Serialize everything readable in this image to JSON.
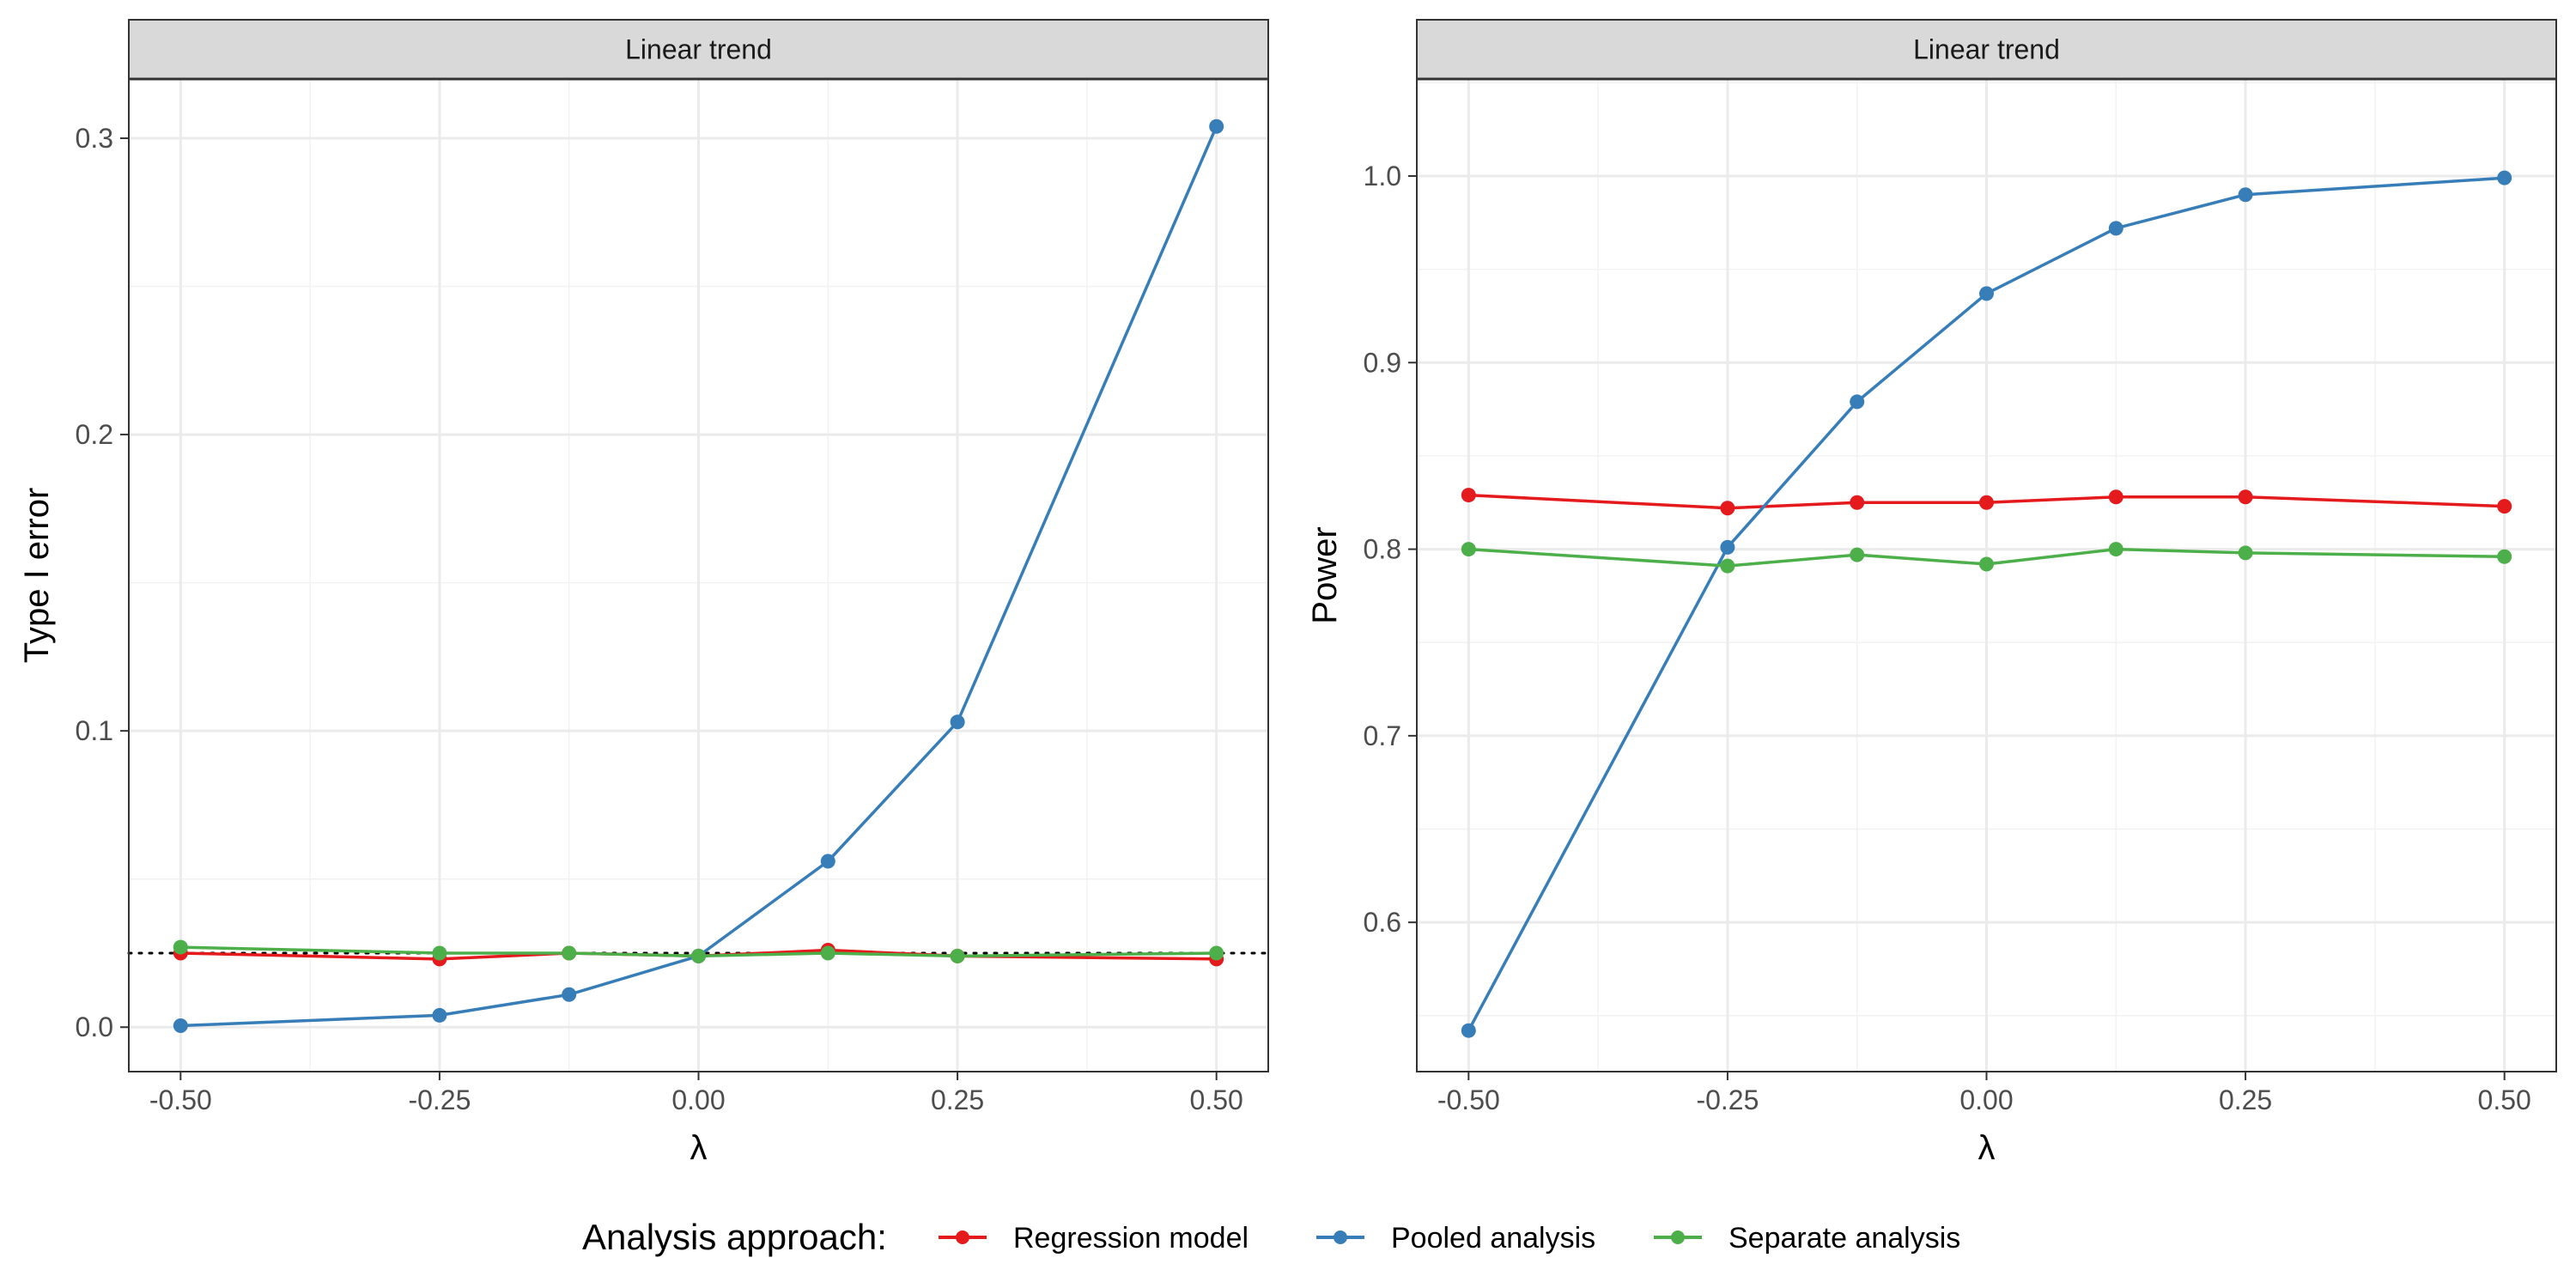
{
  "chart_data": [
    {
      "type": "line",
      "title": "Linear trend",
      "xlabel": "λ",
      "ylabel": "Type I error",
      "x": [
        -0.5,
        -0.25,
        -0.125,
        0.0,
        0.125,
        0.25,
        0.5
      ],
      "xticks": [
        -0.5,
        -0.25,
        0.0,
        0.25,
        0.5
      ],
      "xtick_labels": [
        "-0.50",
        "-0.25",
        "0.00",
        "0.25",
        "0.50"
      ],
      "yticks": [
        0.0,
        0.1,
        0.2,
        0.3
      ],
      "ytick_labels": [
        "0.0",
        "0.1",
        "0.2",
        "0.3"
      ],
      "xlim": [
        -0.55,
        0.55
      ],
      "ylim": [
        -0.015,
        0.32
      ],
      "reference_line": {
        "y": 0.025,
        "style": "dotted"
      },
      "grid": true,
      "series": [
        {
          "name": "Regression model",
          "color": "#E41A1C",
          "values": [
            0.025,
            0.023,
            0.025,
            0.024,
            0.026,
            0.024,
            0.023
          ]
        },
        {
          "name": "Pooled analysis",
          "color": "#377EB8",
          "values": [
            0.0005,
            0.004,
            0.011,
            0.024,
            0.056,
            0.103,
            0.304
          ]
        },
        {
          "name": "Separate analysis",
          "color": "#4DAF4A",
          "values": [
            0.027,
            0.025,
            0.025,
            0.024,
            0.025,
            0.024,
            0.025
          ]
        }
      ]
    },
    {
      "type": "line",
      "title": "Linear trend",
      "xlabel": "λ",
      "ylabel": "Power",
      "x": [
        -0.5,
        -0.25,
        -0.125,
        0.0,
        0.125,
        0.25,
        0.5
      ],
      "xticks": [
        -0.5,
        -0.25,
        0.0,
        0.25,
        0.5
      ],
      "xtick_labels": [
        "-0.50",
        "-0.25",
        "0.00",
        "0.25",
        "0.50"
      ],
      "yticks": [
        0.6,
        0.7,
        0.8,
        0.9,
        1.0
      ],
      "ytick_labels": [
        "0.6",
        "0.7",
        "0.8",
        "0.9",
        "1.0"
      ],
      "xlim": [
        -0.55,
        0.55
      ],
      "ylim": [
        0.52,
        1.052
      ],
      "grid": true,
      "series": [
        {
          "name": "Regression model",
          "color": "#E41A1C",
          "values": [
            0.829,
            0.822,
            0.825,
            0.825,
            0.828,
            0.828,
            0.823
          ]
        },
        {
          "name": "Pooled analysis",
          "color": "#377EB8",
          "values": [
            0.542,
            0.801,
            0.879,
            0.937,
            0.972,
            0.99,
            0.999
          ]
        },
        {
          "name": "Separate analysis",
          "color": "#4DAF4A",
          "values": [
            0.8,
            0.791,
            0.797,
            0.792,
            0.8,
            0.798,
            0.796
          ]
        }
      ]
    }
  ],
  "legend": {
    "title": "Analysis approach:",
    "placement": "bottom",
    "entries": [
      {
        "label": "Regression model",
        "color": "#E41A1C"
      },
      {
        "label": "Pooled analysis",
        "color": "#377EB8"
      },
      {
        "label": "Separate analysis",
        "color": "#4DAF4A"
      }
    ]
  }
}
